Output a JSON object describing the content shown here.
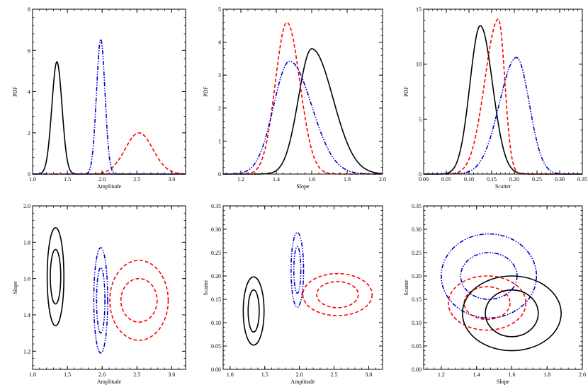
{
  "chart_data": [
    {
      "type": "line",
      "xlabel": "Amplitude",
      "ylabel": "PDF",
      "xlim": [
        1.0,
        3.2
      ],
      "ylim": [
        0,
        8
      ],
      "x_ticks": [
        "1.0",
        "1.5",
        "2.0",
        "2.5",
        "3.0"
      ],
      "y_ticks": [
        "0",
        "2",
        "4",
        "6",
        "8"
      ],
      "series": [
        {
          "style": "solid",
          "color": "#000000",
          "peak_x": 1.35,
          "peak_y": 5.45,
          "sigma": 0.073
        },
        {
          "style": "dashed",
          "color": "#ff0000",
          "peak_x": 2.53,
          "peak_y": 2.0,
          "sigma": 0.2
        },
        {
          "style": "dash-dot-dot",
          "color": "#0000cc",
          "peak_x": 1.98,
          "peak_y": 6.55,
          "sigma": 0.061
        }
      ]
    },
    {
      "type": "line",
      "xlabel": "Slope",
      "ylabel": "PDF",
      "xlim": [
        1.1,
        2.0
      ],
      "ylim": [
        0,
        5
      ],
      "x_ticks": [
        "1.2",
        "1.4",
        "1.6",
        "1.8",
        "2.0"
      ],
      "y_ticks": [
        "0",
        "1",
        "2",
        "3",
        "4",
        "5"
      ],
      "series": [
        {
          "style": "solid",
          "color": "#000000",
          "peak_x": 1.6,
          "peak_y": 3.8,
          "sigma_left": 0.075,
          "sigma_right": 0.12
        },
        {
          "style": "dashed",
          "color": "#ff0000",
          "peak_x": 1.46,
          "peak_y": 4.6,
          "sigma_left": 0.065,
          "sigma_right": 0.073
        },
        {
          "style": "dash-dot-dot",
          "color": "#0000cc",
          "peak_x": 1.475,
          "peak_y": 3.42,
          "sigma_left": 0.09,
          "sigma_right": 0.125
        }
      ]
    },
    {
      "type": "line",
      "xlabel": "Scatter",
      "ylabel": "PDF",
      "xlim": [
        0.0,
        0.35
      ],
      "ylim": [
        0,
        15
      ],
      "x_ticks": [
        "0.00",
        "0.05",
        "0.10",
        "0.15",
        "0.20",
        "0.25",
        "0.30",
        "0.35"
      ],
      "y_ticks": [
        "0",
        "5",
        "10",
        "15"
      ],
      "series": [
        {
          "style": "solid",
          "color": "#000000",
          "peak_x": 0.125,
          "peak_y": 13.5,
          "sigma_left": 0.023,
          "sigma_right": 0.027
        },
        {
          "style": "dashed",
          "color": "#ff0000",
          "peak_x": 0.165,
          "peak_y": 14.1,
          "sigma_left": 0.03,
          "sigma_right": 0.014
        },
        {
          "style": "dash-dot-dot",
          "color": "#0000cc",
          "peak_x": 0.205,
          "peak_y": 10.6,
          "sigma_left": 0.038,
          "sigma_right": 0.028
        }
      ]
    },
    {
      "type": "scatter",
      "xlabel": "Amplitude",
      "ylabel": "Slope",
      "xlim": [
        1.0,
        3.2
      ],
      "ylim": [
        1.1,
        2.0
      ],
      "x_ticks": [
        "1.0",
        "1.5",
        "2.0",
        "2.5",
        "3.0"
      ],
      "y_ticks": [
        "1.2",
        "1.4",
        "1.6",
        "1.8",
        "2.0"
      ],
      "contours": [
        {
          "style": "solid",
          "color": "#000000",
          "cx": 1.33,
          "cy": 1.61,
          "rx": 0.12,
          "ry": 0.27
        },
        {
          "style": "solid",
          "color": "#000000",
          "cx": 1.33,
          "cy": 1.61,
          "rx": 0.075,
          "ry": 0.15
        },
        {
          "style": "dash-dot-dot",
          "color": "#0000cc",
          "cx": 1.98,
          "cy": 1.48,
          "rx": 0.1,
          "ry": 0.29
        },
        {
          "style": "dash-dot-dot",
          "color": "#0000cc",
          "cx": 1.98,
          "cy": 1.48,
          "rx": 0.06,
          "ry": 0.18
        },
        {
          "style": "dashed",
          "color": "#ff0000",
          "cx": 2.53,
          "cy": 1.48,
          "rx": 0.42,
          "ry": 0.22
        },
        {
          "style": "dashed",
          "color": "#ff0000",
          "cx": 2.53,
          "cy": 1.48,
          "rx": 0.26,
          "ry": 0.12
        }
      ]
    },
    {
      "type": "scatter",
      "xlabel": "Amplitude",
      "ylabel": "Scatter",
      "xlim": [
        0.9,
        3.2
      ],
      "ylim": [
        0.0,
        0.35
      ],
      "x_ticks": [
        "1.0",
        "1.5",
        "2.0",
        "2.5",
        "3.0"
      ],
      "y_ticks": [
        "0.00",
        "0.05",
        "0.10",
        "0.15",
        "0.20",
        "0.25",
        "0.30",
        "0.35"
      ],
      "contours": [
        {
          "style": "solid",
          "color": "#000000",
          "cx": 1.34,
          "cy": 0.125,
          "rx": 0.15,
          "ry": 0.073
        },
        {
          "style": "solid",
          "color": "#000000",
          "cx": 1.34,
          "cy": 0.125,
          "rx": 0.08,
          "ry": 0.045
        },
        {
          "style": "dash-dot-dot",
          "color": "#0000cc",
          "cx": 1.97,
          "cy": 0.213,
          "rx": 0.09,
          "ry": 0.08
        },
        {
          "style": "dash-dot-dot",
          "color": "#0000cc",
          "cx": 1.97,
          "cy": 0.213,
          "rx": 0.05,
          "ry": 0.05
        },
        {
          "style": "dashed",
          "color": "#ff0000",
          "cx": 2.55,
          "cy": 0.16,
          "rx": 0.5,
          "ry": 0.045
        },
        {
          "style": "dashed",
          "color": "#ff0000",
          "cx": 2.55,
          "cy": 0.16,
          "rx": 0.3,
          "ry": 0.028
        }
      ]
    },
    {
      "type": "scatter",
      "xlabel": "Slope",
      "ylabel": "Scatter",
      "xlim": [
        1.1,
        2.0
      ],
      "ylim": [
        0.0,
        0.35
      ],
      "x_ticks": [
        "1.2",
        "1.4",
        "1.6",
        "1.8",
        "2.0"
      ],
      "y_ticks": [
        "0.00",
        "0.05",
        "0.10",
        "0.15",
        "0.20",
        "0.25",
        "0.30",
        "0.35"
      ],
      "contours": [
        {
          "style": "dash-dot-dot",
          "color": "#0000cc",
          "cx": 1.47,
          "cy": 0.2,
          "rx": 0.27,
          "ry": 0.09
        },
        {
          "style": "dash-dot-dot",
          "color": "#0000cc",
          "cx": 1.47,
          "cy": 0.2,
          "rx": 0.16,
          "ry": 0.05
        },
        {
          "style": "dashed",
          "color": "#ff0000",
          "cx": 1.46,
          "cy": 0.142,
          "rx": 0.22,
          "ry": 0.058
        },
        {
          "style": "dashed",
          "color": "#ff0000",
          "cx": 1.46,
          "cy": 0.142,
          "rx": 0.13,
          "ry": 0.035
        },
        {
          "style": "solid",
          "color": "#000000",
          "cx": 1.6,
          "cy": 0.12,
          "rx": 0.28,
          "ry": 0.08
        },
        {
          "style": "solid",
          "color": "#000000",
          "cx": 1.6,
          "cy": 0.12,
          "rx": 0.15,
          "ry": 0.05
        }
      ]
    }
  ]
}
